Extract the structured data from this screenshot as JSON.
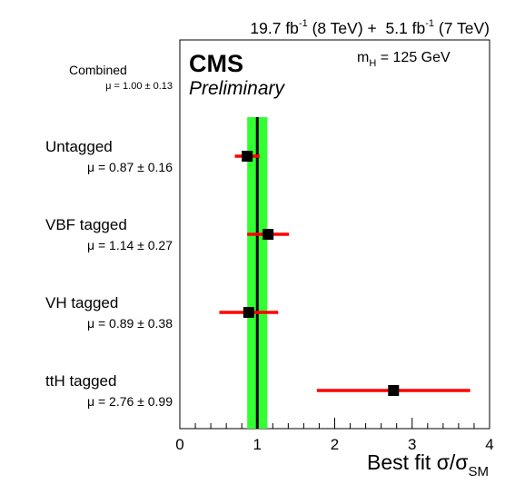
{
  "chart_data": {
    "type": "scatter",
    "header": {
      "lumi_8tev_prefix": "19.7 fb",
      "lumi_8tev_exp": "-1",
      "lumi_8tev_suffix": " (8 TeV) +  ",
      "lumi_7tev_prefix": "5.1 fb",
      "lumi_7tev_exp": "-1",
      "lumi_7tev_suffix": " (7 TeV)"
    },
    "experiment": "CMS",
    "status": "Preliminary",
    "mass_label": {
      "m": "m",
      "sub": "H",
      "rest": " = 125 GeV"
    },
    "xlabel": {
      "main": "Best fit σ/σ",
      "sub": "SM"
    },
    "xlim": [
      0,
      4
    ],
    "x_ticks": [
      0,
      1,
      2,
      3,
      4
    ],
    "x_tick_labels": [
      "0",
      "1",
      "2",
      "3",
      "4"
    ],
    "combined": {
      "label": "Combined",
      "mu_text": "μ = 1.00 ± 0.13",
      "value": 1.0,
      "err_low": 0.13,
      "err_high": 0.13,
      "band_color": "#33ff33"
    },
    "series": [
      {
        "label": "Untagged",
        "mu_text": "μ = 0.87 ± 0.16",
        "value": 0.87,
        "err_low": 0.16,
        "err_high": 0.16
      },
      {
        "label": "VBF tagged",
        "mu_text": "μ = 1.14 ± 0.27",
        "value": 1.14,
        "err_low": 0.27,
        "err_high": 0.27
      },
      {
        "label": "VH tagged",
        "mu_text": "μ = 0.89 ± 0.38",
        "value": 0.89,
        "err_low": 0.38,
        "err_high": 0.38
      },
      {
        "label": "ttH tagged",
        "mu_text": "μ = 2.76 ± 0.99",
        "value": 2.76,
        "err_low": 0.99,
        "err_high": 0.99
      }
    ],
    "colors": {
      "error_bar": "#ff0000",
      "marker": "#000000",
      "central_line": "#000000",
      "band": "#33ff33"
    },
    "grid": false
  }
}
